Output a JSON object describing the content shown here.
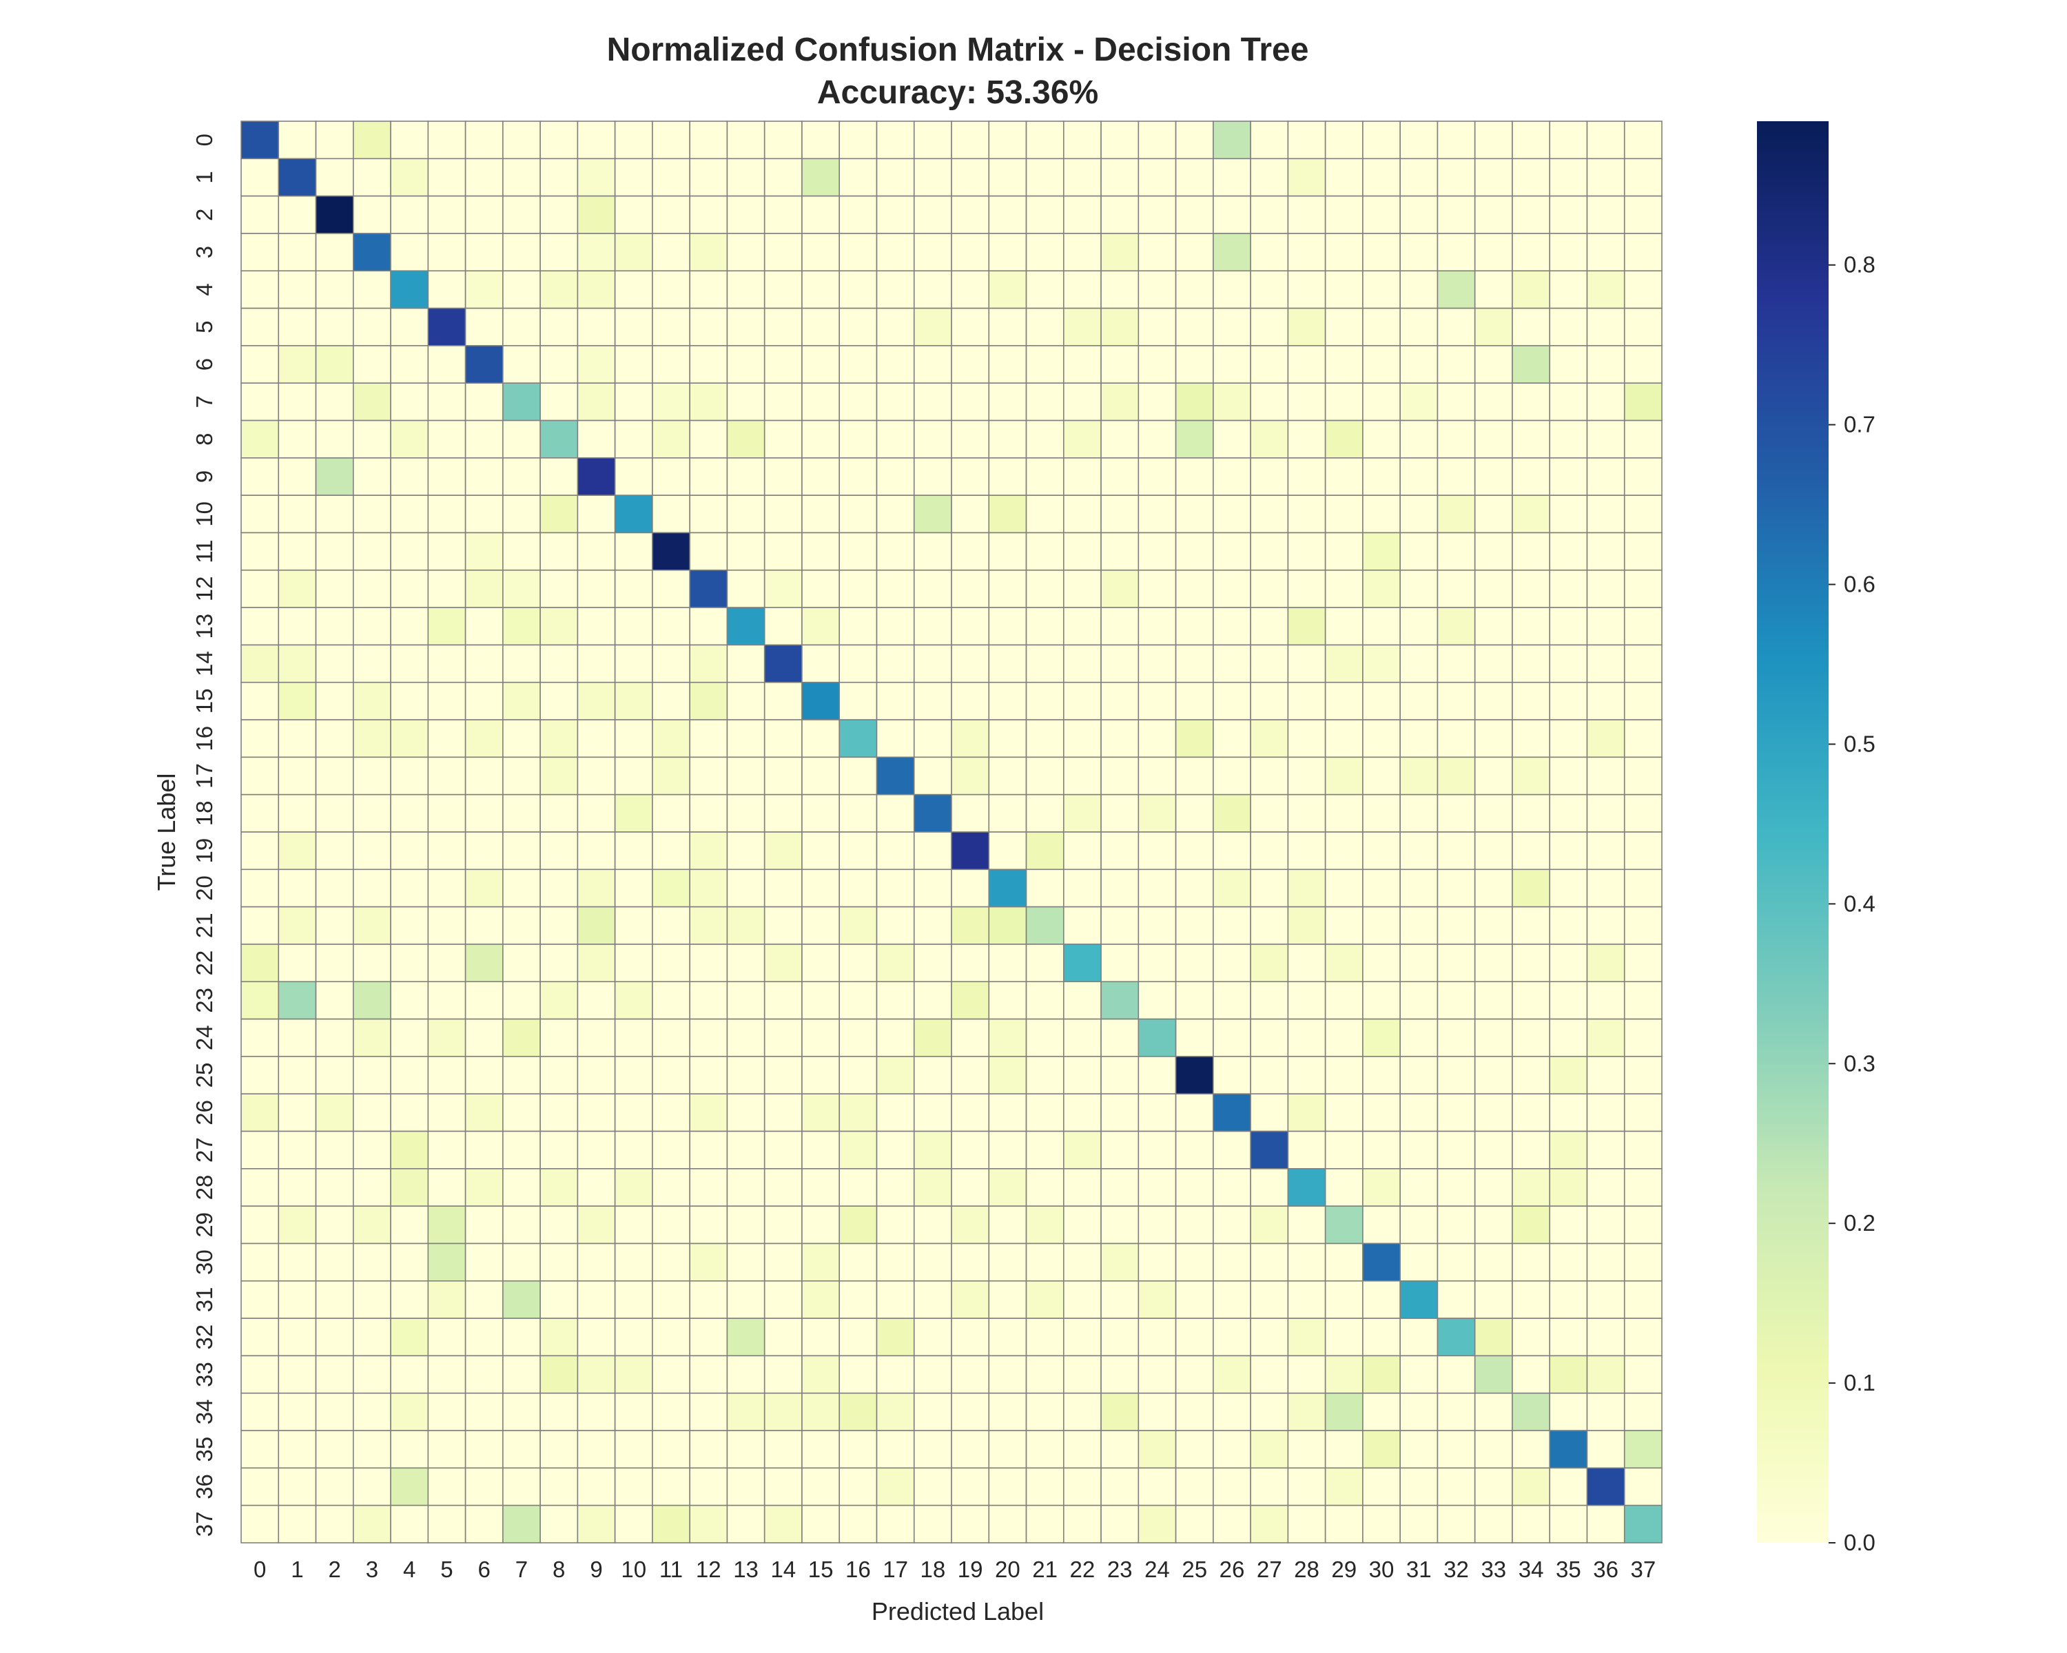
{
  "chart_data": {
    "type": "heatmap",
    "title_line1": "Normalized Confusion Matrix - Decision Tree",
    "title_line2": "Accuracy: 53.36%",
    "xlabel": "Predicted Label",
    "ylabel": "True Label",
    "x_categories": [
      "0",
      "1",
      "2",
      "3",
      "4",
      "5",
      "6",
      "7",
      "8",
      "9",
      "10",
      "11",
      "12",
      "13",
      "14",
      "15",
      "16",
      "17",
      "18",
      "19",
      "20",
      "21",
      "22",
      "23",
      "24",
      "25",
      "26",
      "27",
      "28",
      "29",
      "30",
      "31",
      "32",
      "33",
      "34",
      "35",
      "36",
      "37"
    ],
    "y_categories": [
      "0",
      "1",
      "2",
      "3",
      "4",
      "5",
      "6",
      "7",
      "8",
      "9",
      "10",
      "11",
      "12",
      "13",
      "14",
      "15",
      "16",
      "17",
      "18",
      "19",
      "20",
      "21",
      "22",
      "23",
      "24",
      "25",
      "26",
      "27",
      "28",
      "29",
      "30",
      "31",
      "32",
      "33",
      "34",
      "35",
      "36",
      "37"
    ],
    "diagonal": [
      0.7,
      0.7,
      0.89,
      0.64,
      0.52,
      0.76,
      0.7,
      0.34,
      0.33,
      0.78,
      0.52,
      0.87,
      0.7,
      0.52,
      0.72,
      0.57,
      0.4,
      0.64,
      0.64,
      0.79,
      0.52,
      0.24,
      0.44,
      0.3,
      0.36,
      0.88,
      0.63,
      0.7,
      0.48,
      0.28,
      0.64,
      0.49,
      0.4,
      0.22,
      0.22,
      0.62,
      0.72,
      0.36
    ],
    "off_diagonal": [
      [
        0,
        3,
        0.1
      ],
      [
        0,
        26,
        0.23
      ],
      [
        1,
        4,
        0.05
      ],
      [
        1,
        9,
        0.04
      ],
      [
        1,
        15,
        0.17
      ],
      [
        1,
        28,
        0.05
      ],
      [
        2,
        9,
        0.1
      ],
      [
        3,
        9,
        0.04
      ],
      [
        3,
        10,
        0.05
      ],
      [
        3,
        12,
        0.05
      ],
      [
        3,
        23,
        0.06
      ],
      [
        3,
        26,
        0.19
      ],
      [
        4,
        6,
        0.04
      ],
      [
        4,
        8,
        0.05
      ],
      [
        4,
        9,
        0.05
      ],
      [
        4,
        20,
        0.05
      ],
      [
        4,
        32,
        0.19
      ],
      [
        4,
        34,
        0.06
      ],
      [
        4,
        36,
        0.05
      ],
      [
        5,
        18,
        0.05
      ],
      [
        5,
        22,
        0.05
      ],
      [
        5,
        23,
        0.06
      ],
      [
        5,
        28,
        0.06
      ],
      [
        5,
        33,
        0.05
      ],
      [
        6,
        1,
        0.05
      ],
      [
        6,
        2,
        0.07
      ],
      [
        6,
        9,
        0.04
      ],
      [
        6,
        34,
        0.2
      ],
      [
        7,
        3,
        0.09
      ],
      [
        7,
        9,
        0.05
      ],
      [
        7,
        11,
        0.04
      ],
      [
        7,
        12,
        0.05
      ],
      [
        7,
        23,
        0.06
      ],
      [
        7,
        25,
        0.12
      ],
      [
        7,
        26,
        0.05
      ],
      [
        7,
        31,
        0.04
      ],
      [
        7,
        37,
        0.12
      ],
      [
        8,
        0,
        0.07
      ],
      [
        8,
        4,
        0.05
      ],
      [
        8,
        11,
        0.05
      ],
      [
        8,
        13,
        0.1
      ],
      [
        8,
        22,
        0.05
      ],
      [
        8,
        25,
        0.18
      ],
      [
        8,
        27,
        0.05
      ],
      [
        8,
        29,
        0.1
      ],
      [
        9,
        2,
        0.22
      ],
      [
        10,
        8,
        0.1
      ],
      [
        10,
        18,
        0.17
      ],
      [
        10,
        20,
        0.1
      ],
      [
        10,
        32,
        0.06
      ],
      [
        10,
        34,
        0.05
      ],
      [
        11,
        6,
        0.04
      ],
      [
        11,
        30,
        0.08
      ],
      [
        12,
        1,
        0.05
      ],
      [
        12,
        6,
        0.05
      ],
      [
        12,
        7,
        0.04
      ],
      [
        12,
        14,
        0.04
      ],
      [
        12,
        23,
        0.06
      ],
      [
        12,
        30,
        0.05
      ],
      [
        13,
        5,
        0.08
      ],
      [
        13,
        7,
        0.08
      ],
      [
        13,
        8,
        0.05
      ],
      [
        13,
        15,
        0.05
      ],
      [
        13,
        28,
        0.1
      ],
      [
        13,
        32,
        0.06
      ],
      [
        14,
        0,
        0.06
      ],
      [
        14,
        1,
        0.05
      ],
      [
        14,
        12,
        0.05
      ],
      [
        14,
        29,
        0.05
      ],
      [
        14,
        30,
        0.04
      ],
      [
        15,
        1,
        0.08
      ],
      [
        15,
        3,
        0.05
      ],
      [
        15,
        7,
        0.05
      ],
      [
        15,
        9,
        0.05
      ],
      [
        15,
        10,
        0.05
      ],
      [
        15,
        12,
        0.09
      ],
      [
        16,
        3,
        0.05
      ],
      [
        16,
        4,
        0.05
      ],
      [
        16,
        6,
        0.05
      ],
      [
        16,
        8,
        0.05
      ],
      [
        16,
        11,
        0.05
      ],
      [
        16,
        19,
        0.05
      ],
      [
        16,
        25,
        0.1
      ],
      [
        16,
        27,
        0.05
      ],
      [
        16,
        36,
        0.06
      ],
      [
        17,
        8,
        0.05
      ],
      [
        17,
        11,
        0.05
      ],
      [
        17,
        19,
        0.05
      ],
      [
        17,
        29,
        0.05
      ],
      [
        17,
        31,
        0.05
      ],
      [
        17,
        32,
        0.06
      ],
      [
        17,
        34,
        0.05
      ],
      [
        18,
        10,
        0.08
      ],
      [
        18,
        22,
        0.05
      ],
      [
        18,
        24,
        0.05
      ],
      [
        18,
        26,
        0.1
      ],
      [
        19,
        1,
        0.05
      ],
      [
        19,
        12,
        0.05
      ],
      [
        19,
        14,
        0.05
      ],
      [
        19,
        21,
        0.1
      ],
      [
        20,
        6,
        0.05
      ],
      [
        20,
        9,
        0.05
      ],
      [
        20,
        11,
        0.08
      ],
      [
        20,
        12,
        0.05
      ],
      [
        20,
        26,
        0.05
      ],
      [
        20,
        28,
        0.05
      ],
      [
        20,
        34,
        0.1
      ],
      [
        21,
        1,
        0.05
      ],
      [
        21,
        3,
        0.05
      ],
      [
        21,
        9,
        0.13
      ],
      [
        21,
        12,
        0.05
      ],
      [
        21,
        13,
        0.05
      ],
      [
        21,
        16,
        0.05
      ],
      [
        21,
        19,
        0.1
      ],
      [
        21,
        20,
        0.12
      ],
      [
        21,
        28,
        0.06
      ],
      [
        22,
        0,
        0.1
      ],
      [
        22,
        6,
        0.16
      ],
      [
        22,
        9,
        0.05
      ],
      [
        22,
        14,
        0.05
      ],
      [
        22,
        17,
        0.05
      ],
      [
        22,
        27,
        0.06
      ],
      [
        22,
        29,
        0.05
      ],
      [
        22,
        36,
        0.06
      ],
      [
        23,
        0,
        0.08
      ],
      [
        23,
        1,
        0.28
      ],
      [
        23,
        3,
        0.2
      ],
      [
        23,
        8,
        0.05
      ],
      [
        23,
        10,
        0.05
      ],
      [
        23,
        19,
        0.1
      ],
      [
        24,
        3,
        0.05
      ],
      [
        24,
        5,
        0.05
      ],
      [
        24,
        7,
        0.1
      ],
      [
        24,
        18,
        0.1
      ],
      [
        24,
        20,
        0.05
      ],
      [
        24,
        30,
        0.08
      ],
      [
        24,
        36,
        0.05
      ],
      [
        25,
        17,
        0.05
      ],
      [
        25,
        20,
        0.05
      ],
      [
        25,
        35,
        0.06
      ],
      [
        26,
        0,
        0.06
      ],
      [
        26,
        2,
        0.05
      ],
      [
        26,
        6,
        0.05
      ],
      [
        26,
        12,
        0.05
      ],
      [
        26,
        15,
        0.05
      ],
      [
        26,
        16,
        0.05
      ],
      [
        26,
        28,
        0.06
      ],
      [
        27,
        4,
        0.1
      ],
      [
        27,
        16,
        0.05
      ],
      [
        27,
        18,
        0.05
      ],
      [
        27,
        22,
        0.05
      ],
      [
        27,
        35,
        0.06
      ],
      [
        28,
        4,
        0.09
      ],
      [
        28,
        6,
        0.05
      ],
      [
        28,
        8,
        0.05
      ],
      [
        28,
        10,
        0.05
      ],
      [
        28,
        18,
        0.05
      ],
      [
        28,
        20,
        0.05
      ],
      [
        28,
        30,
        0.05
      ],
      [
        28,
        34,
        0.05
      ],
      [
        28,
        35,
        0.06
      ],
      [
        29,
        1,
        0.05
      ],
      [
        29,
        3,
        0.05
      ],
      [
        29,
        5,
        0.15
      ],
      [
        29,
        9,
        0.05
      ],
      [
        29,
        16,
        0.1
      ],
      [
        29,
        19,
        0.05
      ],
      [
        29,
        21,
        0.05
      ],
      [
        29,
        27,
        0.05
      ],
      [
        29,
        34,
        0.1
      ],
      [
        30,
        5,
        0.17
      ],
      [
        30,
        12,
        0.05
      ],
      [
        30,
        15,
        0.05
      ],
      [
        30,
        23,
        0.05
      ],
      [
        31,
        5,
        0.05
      ],
      [
        31,
        7,
        0.2
      ],
      [
        31,
        15,
        0.05
      ],
      [
        31,
        19,
        0.05
      ],
      [
        31,
        21,
        0.05
      ],
      [
        31,
        24,
        0.05
      ],
      [
        32,
        4,
        0.08
      ],
      [
        32,
        8,
        0.05
      ],
      [
        32,
        13,
        0.17
      ],
      [
        32,
        17,
        0.1
      ],
      [
        32,
        28,
        0.05
      ],
      [
        32,
        33,
        0.1
      ],
      [
        33,
        8,
        0.1
      ],
      [
        33,
        9,
        0.05
      ],
      [
        33,
        10,
        0.05
      ],
      [
        33,
        15,
        0.05
      ],
      [
        33,
        26,
        0.05
      ],
      [
        33,
        29,
        0.05
      ],
      [
        33,
        30,
        0.1
      ],
      [
        33,
        35,
        0.1
      ],
      [
        33,
        36,
        0.06
      ],
      [
        34,
        4,
        0.05
      ],
      [
        34,
        13,
        0.05
      ],
      [
        34,
        14,
        0.05
      ],
      [
        34,
        15,
        0.05
      ],
      [
        34,
        16,
        0.1
      ],
      [
        34,
        17,
        0.05
      ],
      [
        34,
        23,
        0.1
      ],
      [
        34,
        28,
        0.05
      ],
      [
        34,
        29,
        0.2
      ],
      [
        35,
        24,
        0.06
      ],
      [
        35,
        27,
        0.05
      ],
      [
        35,
        30,
        0.1
      ],
      [
        35,
        37,
        0.18
      ],
      [
        36,
        4,
        0.16
      ],
      [
        36,
        17,
        0.05
      ],
      [
        36,
        29,
        0.05
      ],
      [
        36,
        34,
        0.06
      ],
      [
        37,
        3,
        0.05
      ],
      [
        37,
        7,
        0.2
      ],
      [
        37,
        9,
        0.05
      ],
      [
        37,
        11,
        0.1
      ],
      [
        37,
        12,
        0.05
      ],
      [
        37,
        14,
        0.05
      ],
      [
        37,
        24,
        0.06
      ],
      [
        37,
        27,
        0.05
      ]
    ],
    "value_range": [
      0.0,
      0.89
    ],
    "colormap": [
      "#ffffd9",
      "#edf8b1",
      "#c7e9b4",
      "#7fcdbb",
      "#41b6c4",
      "#1d91c0",
      "#225ea8",
      "#253494",
      "#081d58"
    ],
    "colorbar_ticks": [
      "0.0",
      "0.1",
      "0.2",
      "0.3",
      "0.4",
      "0.5",
      "0.6",
      "0.7",
      "0.8"
    ],
    "cell_border_color": "#808080",
    "grid": false,
    "legend": "colorbar-right"
  }
}
